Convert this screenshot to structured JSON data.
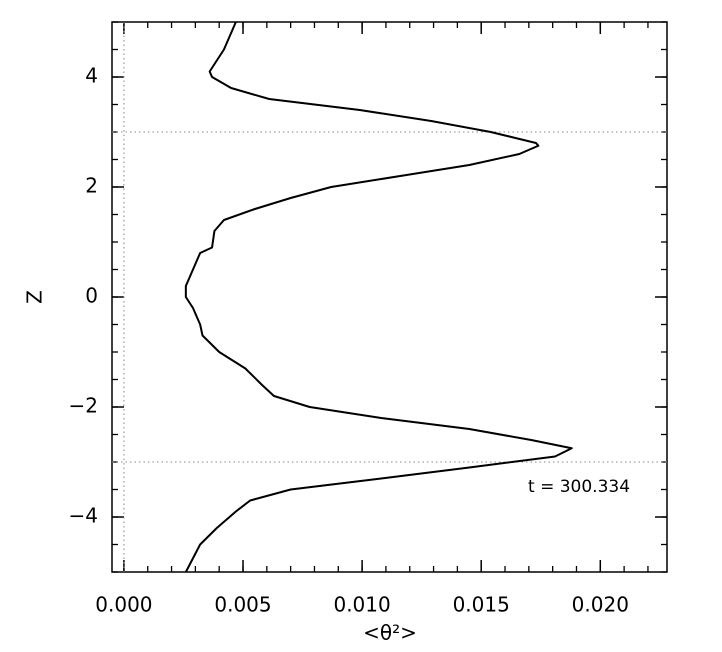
{
  "chart_data": {
    "type": "line",
    "xlabel": "<θ²>",
    "ylabel": "Z",
    "annotation": "t = 300.334",
    "xlim": [
      -0.0005,
      0.0228
    ],
    "ylim": [
      -5,
      5
    ],
    "xticks": [
      {
        "value": 0,
        "label": "0.000"
      },
      {
        "value": 0.005,
        "label": "0.005"
      },
      {
        "value": 0.01,
        "label": "0.010"
      },
      {
        "value": 0.015,
        "label": "0.015"
      },
      {
        "value": 0.02,
        "label": "0.020"
      }
    ],
    "yticks": [
      {
        "value": -4,
        "label": "−4"
      },
      {
        "value": -2,
        "label": "−2"
      },
      0,
      2,
      4
    ],
    "reference_lines": {
      "x": [
        0
      ],
      "y": [
        3,
        -3
      ]
    },
    "series": [
      {
        "color": "#000000",
        "x": [
          0.0047,
          0.0042,
          0.0036,
          0.0037,
          0.0045,
          0.0061,
          0.0099,
          0.0129,
          0.0154,
          0.0173,
          0.0174,
          0.0166,
          0.0145,
          0.0116,
          0.0087,
          0.007,
          0.0055,
          0.0042,
          0.0038,
          0.0037,
          0.0032,
          0.003,
          0.0028,
          0.0026,
          0.0026,
          0.0029,
          0.0032,
          0.0033,
          0.004,
          0.0051,
          0.0058,
          0.0063,
          0.0078,
          0.0108,
          0.0145,
          0.0171,
          0.0188,
          0.0181,
          0.0145,
          0.0108,
          0.007,
          0.0053,
          0.0047,
          0.0039,
          0.0032,
          0.0026
        ],
        "values": [
          5,
          4.5,
          4.1,
          4.0,
          3.8,
          3.6,
          3.4,
          3.2,
          3.0,
          2.8,
          2.75,
          2.6,
          2.4,
          2.2,
          2.0,
          1.8,
          1.6,
          1.4,
          1.2,
          0.9,
          0.8,
          0.6,
          0.4,
          0.2,
          0,
          -0.2,
          -0.5,
          -0.7,
          -1.0,
          -1.3,
          -1.6,
          -1.8,
          -2.0,
          -2.2,
          -2.4,
          -2.6,
          -2.75,
          -2.9,
          -3.1,
          -3.3,
          -3.5,
          -3.7,
          -3.9,
          -4.2,
          -4.5,
          -5
        ]
      }
    ]
  }
}
